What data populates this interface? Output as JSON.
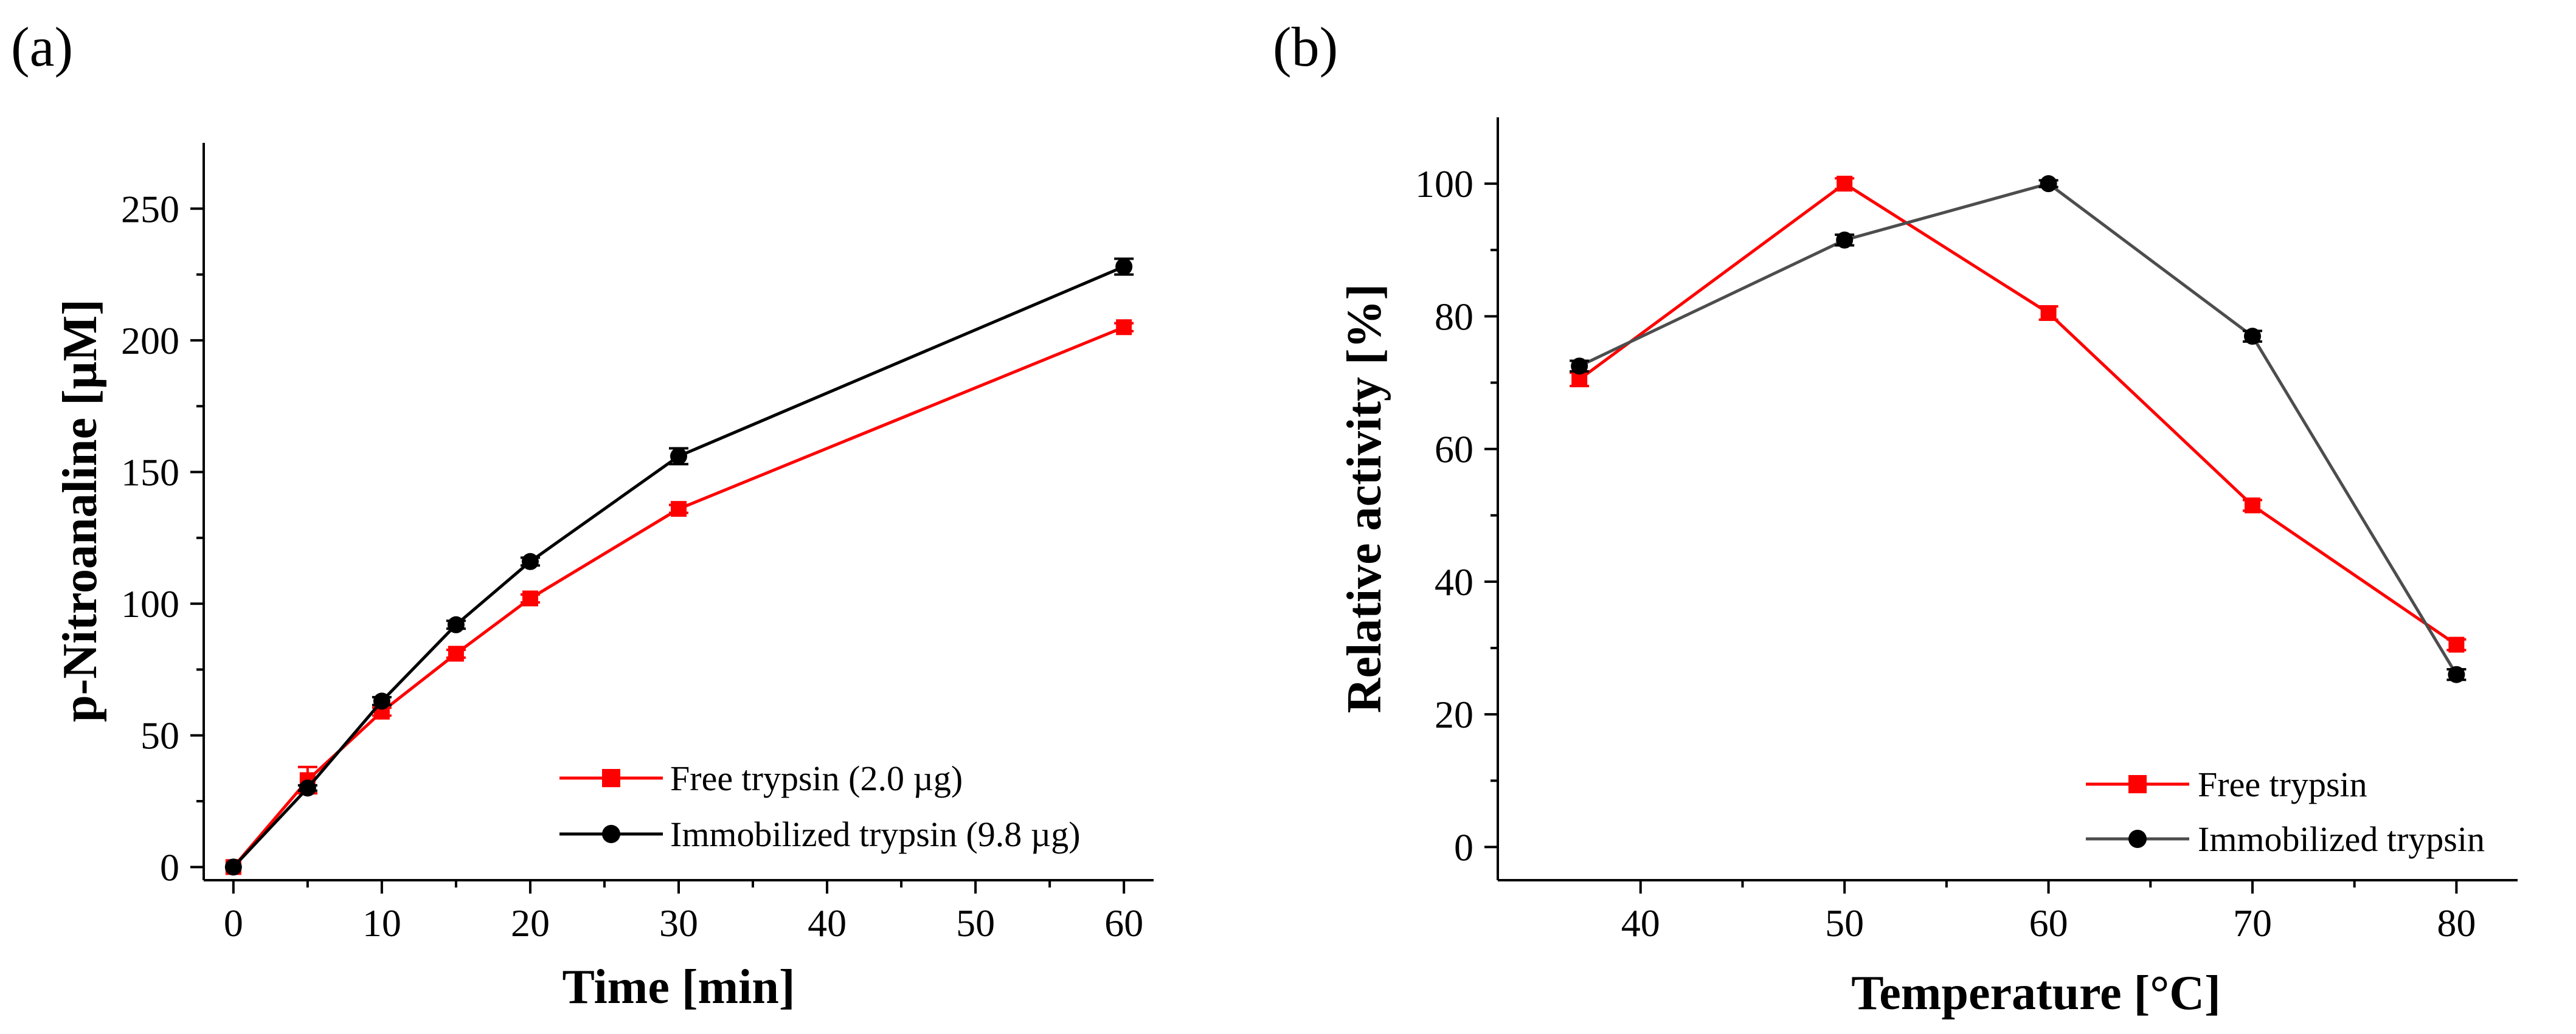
{
  "chart_data": [
    {
      "panel_label": "(a)",
      "type": "line",
      "xlabel": "Time [min]",
      "ylabel": "p-Nitroanaline [µM]",
      "xlim": [
        -2,
        62
      ],
      "ylim": [
        -5,
        275
      ],
      "xticks": [
        0,
        10,
        20,
        30,
        40,
        50,
        60
      ],
      "yticks": [
        0,
        50,
        100,
        150,
        200,
        250
      ],
      "legend_position": "bottom-right",
      "series": [
        {
          "name": "Free trypsin (2.0 µg)",
          "color": "#ff0000",
          "marker": "square",
          "x": [
            0,
            5,
            10,
            15,
            20,
            30,
            60
          ],
          "y": [
            0,
            33,
            59,
            81,
            102,
            136,
            205
          ],
          "err": [
            0,
            5,
            1.5,
            1.5,
            1.5,
            1.5,
            1.5
          ]
        },
        {
          "name": "Immobilized trypsin (9.8 µg)",
          "color": "#000000",
          "marker": "circle",
          "x": [
            0,
            5,
            10,
            15,
            20,
            30,
            60
          ],
          "y": [
            0,
            30,
            63,
            92,
            116,
            156,
            228
          ],
          "err": [
            0,
            1,
            1.5,
            1.5,
            1.5,
            3,
            3
          ]
        }
      ]
    },
    {
      "panel_label": "(b)",
      "type": "line",
      "xlabel": "Temperature [°C]",
      "ylabel": "Relative activity [%]",
      "xlim": [
        33,
        83
      ],
      "ylim": [
        -5,
        110
      ],
      "xticks": [
        40,
        50,
        60,
        70,
        80
      ],
      "yticks": [
        0,
        20,
        40,
        60,
        80,
        100
      ],
      "legend_position": "bottom-right",
      "series": [
        {
          "name": "Free trypsin",
          "color": "#ff0000",
          "marker": "square",
          "x": [
            37,
            50,
            60,
            70,
            80
          ],
          "y": [
            70.5,
            100,
            80.5,
            51.5,
            30.5
          ],
          "err": [
            1,
            0.8,
            1,
            0.8,
            0.8
          ]
        },
        {
          "name": "Immobilized trypsin",
          "color": "#4d4d4d",
          "marker": "circle",
          "x": [
            37,
            50,
            60,
            70,
            80
          ],
          "y": [
            72.5,
            91.5,
            100,
            77,
            26
          ],
          "err": [
            0.8,
            0.8,
            0.5,
            0.8,
            0.8
          ]
        }
      ]
    }
  ]
}
